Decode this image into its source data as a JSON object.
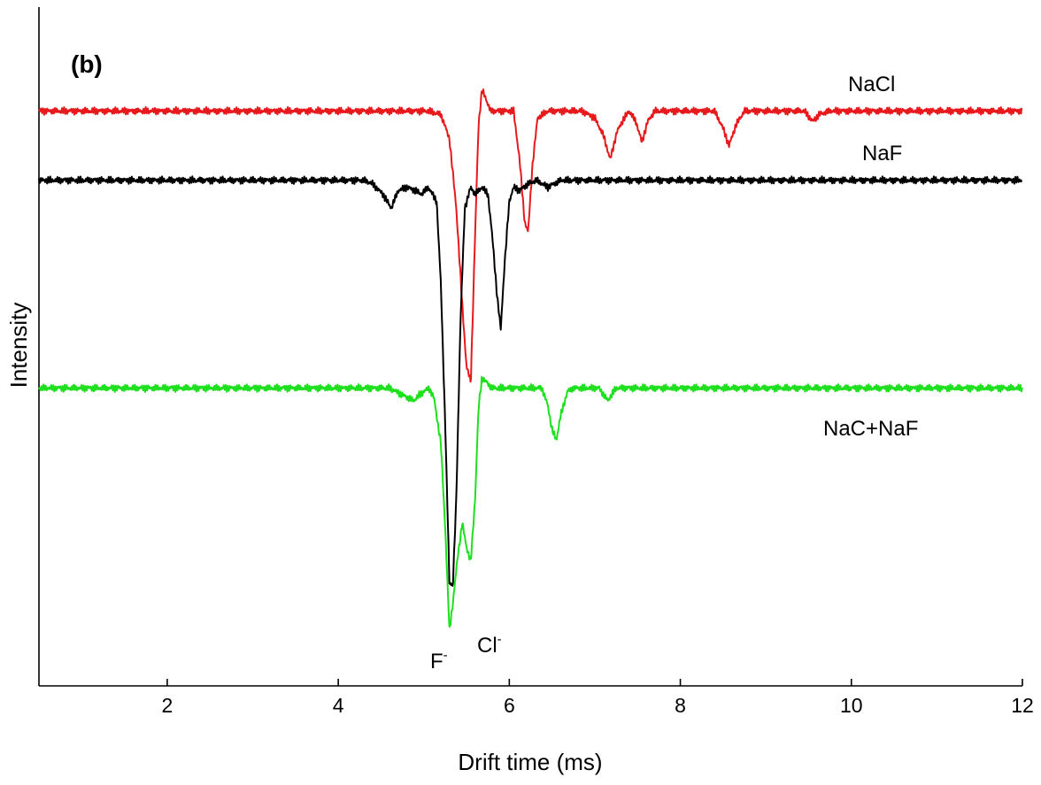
{
  "chart_data": {
    "type": "line",
    "panel_label": "(b)",
    "xlabel": "Drift time (ms)",
    "ylabel": "Intensity",
    "xlim": [
      0.5,
      12
    ],
    "ylim": [
      -8.3,
      1.5
    ],
    "xticks": [
      2,
      4,
      6,
      8,
      10,
      12
    ],
    "yticks_shown": false,
    "grid": false,
    "legend": "labels next to traces",
    "series": [
      {
        "name": "NaCl",
        "color": "#e8191c",
        "offset": 0,
        "points": [
          [
            0.5,
            0
          ],
          [
            5.05,
            0
          ],
          [
            5.2,
            -0.05
          ],
          [
            5.3,
            -0.4
          ],
          [
            5.38,
            -1.4
          ],
          [
            5.45,
            -2.8
          ],
          [
            5.5,
            -3.7
          ],
          [
            5.55,
            -3.9
          ],
          [
            5.6,
            -1.8
          ],
          [
            5.64,
            -0.2
          ],
          [
            5.68,
            0.3
          ],
          [
            5.72,
            0.2
          ],
          [
            5.78,
            0
          ],
          [
            6.05,
            0
          ],
          [
            6.12,
            -0.7
          ],
          [
            6.18,
            -1.6
          ],
          [
            6.22,
            -1.75
          ],
          [
            6.27,
            -0.8
          ],
          [
            6.33,
            -0.1
          ],
          [
            6.45,
            0
          ],
          [
            6.85,
            0
          ],
          [
            7.0,
            -0.1
          ],
          [
            7.1,
            -0.35
          ],
          [
            7.18,
            -0.7
          ],
          [
            7.26,
            -0.3
          ],
          [
            7.32,
            -0.15
          ],
          [
            7.4,
            0
          ],
          [
            7.48,
            -0.15
          ],
          [
            7.55,
            -0.45
          ],
          [
            7.62,
            -0.15
          ],
          [
            7.7,
            0
          ],
          [
            8.4,
            0
          ],
          [
            8.5,
            -0.25
          ],
          [
            8.57,
            -0.5
          ],
          [
            8.65,
            -0.2
          ],
          [
            8.75,
            0
          ],
          [
            9.45,
            0
          ],
          [
            9.55,
            -0.15
          ],
          [
            9.62,
            -0.05
          ],
          [
            9.75,
            0
          ],
          [
            12,
            0
          ]
        ]
      },
      {
        "name": "NaF",
        "color": "#000000",
        "offset": -1,
        "points": [
          [
            0.5,
            0
          ],
          [
            4.3,
            0
          ],
          [
            4.4,
            -0.05
          ],
          [
            4.52,
            -0.2
          ],
          [
            4.62,
            -0.4
          ],
          [
            4.7,
            -0.15
          ],
          [
            4.8,
            -0.1
          ],
          [
            4.9,
            -0.15
          ],
          [
            4.98,
            -0.2
          ],
          [
            5.05,
            -0.1
          ],
          [
            5.15,
            -0.3
          ],
          [
            5.2,
            -1.5
          ],
          [
            5.25,
            -3.5
          ],
          [
            5.3,
            -5.8
          ],
          [
            5.34,
            -5.85
          ],
          [
            5.38,
            -4.6
          ],
          [
            5.43,
            -2.0
          ],
          [
            5.48,
            -0.4
          ],
          [
            5.55,
            -0.1
          ],
          [
            5.6,
            -0.2
          ],
          [
            5.68,
            -0.1
          ],
          [
            5.75,
            -0.2
          ],
          [
            5.8,
            -0.8
          ],
          [
            5.86,
            -1.7
          ],
          [
            5.9,
            -2.15
          ],
          [
            5.94,
            -1.3
          ],
          [
            6.0,
            -0.3
          ],
          [
            6.05,
            -0.1
          ],
          [
            6.12,
            -0.15
          ],
          [
            6.22,
            -0.05
          ],
          [
            6.32,
            0
          ],
          [
            6.45,
            -0.1
          ],
          [
            6.6,
            0
          ],
          [
            12,
            0
          ]
        ]
      },
      {
        "name": "NaC+NaF",
        "color": "#1ee01e",
        "offset": -4,
        "points": [
          [
            0.5,
            0
          ],
          [
            4.6,
            0
          ],
          [
            4.75,
            -0.1
          ],
          [
            4.88,
            -0.18
          ],
          [
            4.95,
            -0.1
          ],
          [
            5.0,
            -0.05
          ],
          [
            5.06,
            0
          ],
          [
            5.12,
            -0.15
          ],
          [
            5.2,
            -0.8
          ],
          [
            5.25,
            -2.0
          ],
          [
            5.3,
            -3.5
          ],
          [
            5.34,
            -3.1
          ],
          [
            5.4,
            -2.4
          ],
          [
            5.45,
            -1.95
          ],
          [
            5.5,
            -2.3
          ],
          [
            5.55,
            -2.5
          ],
          [
            5.6,
            -1.6
          ],
          [
            5.64,
            -0.3
          ],
          [
            5.68,
            0.15
          ],
          [
            5.72,
            0.1
          ],
          [
            5.8,
            0
          ],
          [
            6.38,
            0
          ],
          [
            6.45,
            -0.25
          ],
          [
            6.5,
            -0.6
          ],
          [
            6.55,
            -0.75
          ],
          [
            6.6,
            -0.4
          ],
          [
            6.68,
            -0.05
          ],
          [
            6.75,
            0
          ],
          [
            7.05,
            0
          ],
          [
            7.15,
            -0.18
          ],
          [
            7.25,
            0
          ],
          [
            12,
            0
          ]
        ]
      }
    ],
    "annotations": [
      {
        "text": "F",
        "sup": "-",
        "x": 5.1,
        "y": -3.2
      },
      {
        "text": "Cl",
        "sup": "-",
        "x": 5.55,
        "y": -2.95
      }
    ]
  }
}
